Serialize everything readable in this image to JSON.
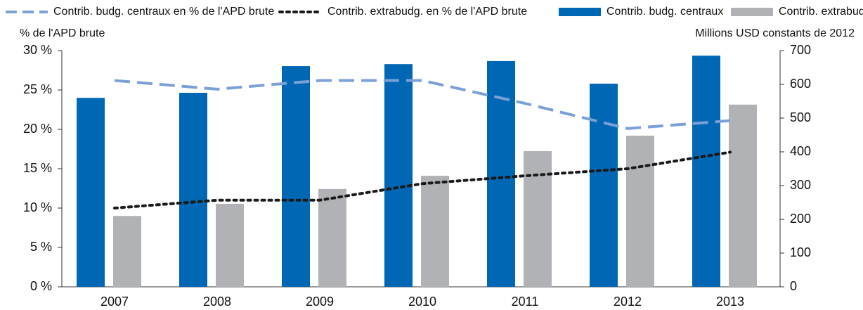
{
  "chart_data": {
    "type": "bar_line",
    "ylabel": "% de l'APD brute",
    "y2label": "Millions USD constants de 2012",
    "categories": [
      "2007",
      "2008",
      "2009",
      "2010",
      "2011",
      "2012",
      "2013"
    ],
    "series": [
      {
        "name": "Contrib. budg. centraux en % de l'APD brute",
        "type": "line",
        "style": "dashed",
        "color": "#7ba0d8",
        "axis": "y",
        "values": [
          26.2,
          25.1,
          26.2,
          26.2,
          23.3,
          20.1,
          21.1
        ]
      },
      {
        "name": "Contrib. extrabudg. en % de l'APD brute",
        "type": "line",
        "style": "dotted",
        "color": "#1a1a1a",
        "axis": "y",
        "values": [
          10.0,
          11.0,
          11.0,
          13.1,
          14.1,
          15.0,
          17.1
        ]
      },
      {
        "name": "Contrib. budg. centraux",
        "type": "bar",
        "color": "#0067b5",
        "axis": "y2",
        "values": [
          560,
          575,
          654,
          660,
          669,
          602,
          685
        ]
      },
      {
        "name": "Contrib. extrabudg.",
        "type": "bar",
        "color": "#b1b2b6",
        "axis": "y2",
        "values": [
          210,
          246,
          290,
          329,
          402,
          448,
          540
        ]
      }
    ],
    "ylim": [
      0,
      30
    ],
    "yticks": [
      {
        "value": 0,
        "label": "0 %"
      },
      {
        "value": 5,
        "label": "5 %"
      },
      {
        "value": 10,
        "label": "10 %"
      },
      {
        "value": 15,
        "label": "15 %"
      },
      {
        "value": 20,
        "label": "20 %"
      },
      {
        "value": 25,
        "label": "25 %"
      },
      {
        "value": 30,
        "label": "30 %"
      }
    ],
    "y2lim": [
      0,
      700
    ],
    "y2ticks": [
      0,
      100,
      200,
      300,
      400,
      500,
      600,
      700
    ]
  }
}
